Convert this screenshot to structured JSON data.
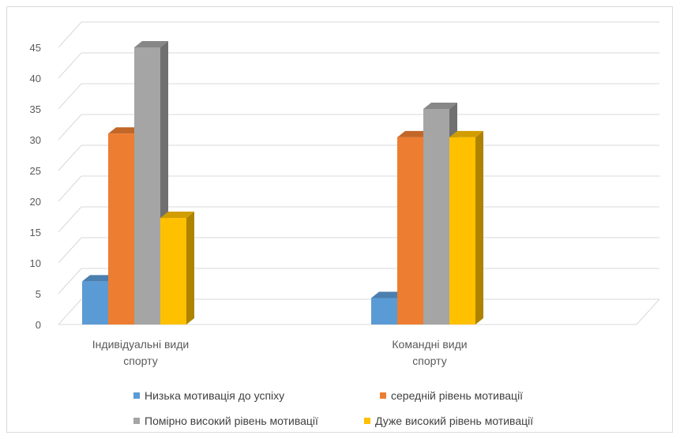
{
  "chart_data": {
    "type": "bar",
    "style": "3d-clustered-column",
    "categories": [
      [
        "Індивідуальні види",
        "спорту"
      ],
      [
        "Командні види",
        "спорту"
      ]
    ],
    "series": [
      {
        "name": "Низька мотивація до успіху",
        "color": "#5B9BD5",
        "values": [
          7,
          4.3
        ]
      },
      {
        "name": "середній рівень мотивації",
        "color": "#ED7D31",
        "values": [
          31,
          30.4
        ]
      },
      {
        "name": "Помірно високий рівень мотивації",
        "color": "#A5A5A5",
        "values": [
          45,
          35
        ]
      },
      {
        "name": "Дуже високий рівень мотивації",
        "color": "#FFC000",
        "values": [
          17.3,
          30.4
        ]
      }
    ],
    "ylim": [
      0,
      45
    ],
    "yticks": [
      "0",
      "5",
      "10",
      "15",
      "20",
      "25",
      "30",
      "35",
      "40",
      "45"
    ],
    "grid": true,
    "legend_position": "bottom"
  }
}
